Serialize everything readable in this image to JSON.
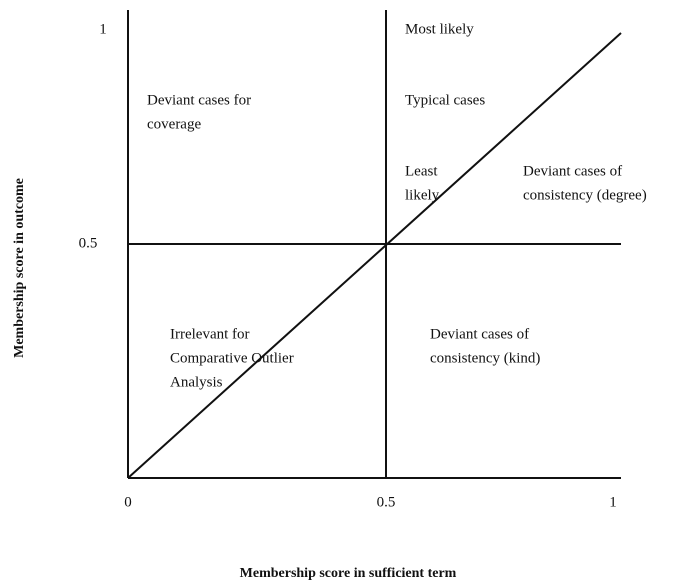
{
  "diagram": {
    "y_axis": {
      "label": "Membership score in outcome",
      "ticks": [
        "0.5",
        "1"
      ]
    },
    "x_axis": {
      "label": "Membership score in sufficient term",
      "ticks": [
        "0",
        "0.5",
        "1"
      ]
    },
    "regions": [
      {
        "lines": [
          "Most likely"
        ]
      },
      {
        "lines": [
          "Deviant cases for",
          "coverage"
        ]
      },
      {
        "lines": [
          "Typical cases"
        ]
      },
      {
        "lines": [
          "Least",
          "likely"
        ]
      },
      {
        "lines": [
          "Deviant cases of",
          "consistency (degree)"
        ]
      },
      {
        "lines": [
          "Irrelevant for",
          "Comparative Outlier",
          "Analysis"
        ]
      },
      {
        "lines": [
          "Deviant cases of",
          "consistency (kind)"
        ]
      }
    ]
  }
}
